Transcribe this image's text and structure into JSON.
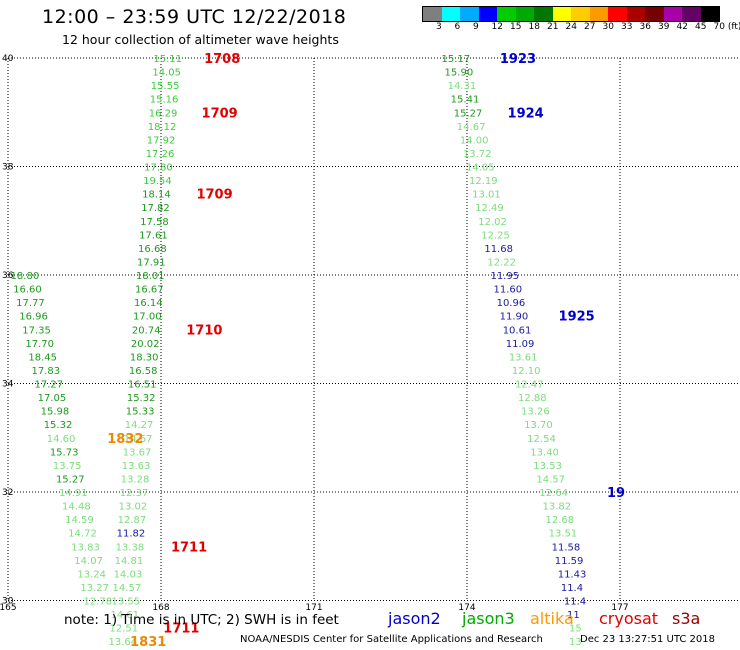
{
  "title": "12:00 – 23:59 UTC 12/22/2018",
  "subtitle": "12 hour collection of altimeter wave heights",
  "color_scale": {
    "labels": [
      "3",
      "6",
      "9",
      "12",
      "15",
      "18",
      "21",
      "24",
      "27",
      "30",
      "33",
      "36",
      "39",
      "42",
      "45",
      "70 (ft)"
    ],
    "colors": [
      "#7f7f7f",
      "#00ffff",
      "#00aaff",
      "#0000ff",
      "#00cc00",
      "#00aa00",
      "#007700",
      "#ffff00",
      "#ffcc00",
      "#ff9900",
      "#ff0000",
      "#aa0000",
      "#770000",
      "#aa00aa",
      "#660066",
      "#000000"
    ]
  },
  "axes": {
    "lon_ticks": [
      "165",
      "168",
      "171",
      "174",
      "177"
    ],
    "lat_ticks": [
      "40",
      "38",
      "36",
      "34",
      "32",
      "30"
    ]
  },
  "tracks": [
    {
      "color": "#3ccc3c",
      "points": [
        {
          "lon": 167.85,
          "lat": 40.0,
          "v": "15.11"
        },
        {
          "lon": 167.83,
          "lat": 39.75,
          "v": "14.05"
        },
        {
          "lon": 167.8,
          "lat": 39.5,
          "v": "15.55"
        },
        {
          "lon": 167.78,
          "lat": 39.25,
          "v": "15.16"
        },
        {
          "lon": 167.76,
          "lat": 39.0,
          "v": "16.29"
        },
        {
          "lon": 167.74,
          "lat": 38.75,
          "v": "18.12"
        },
        {
          "lon": 167.72,
          "lat": 38.5,
          "v": "17.92"
        },
        {
          "lon": 167.7,
          "lat": 38.25,
          "v": "17.26"
        },
        {
          "lon": 167.67,
          "lat": 38.0,
          "v": "17.80"
        },
        {
          "lon": 167.65,
          "lat": 37.75,
          "v": "19.54"
        }
      ]
    },
    {
      "color": "#1e9a1e",
      "points": [
        {
          "lon": 167.63,
          "lat": 37.5,
          "v": "18.14"
        },
        {
          "lon": 167.61,
          "lat": 37.25,
          "v": "17.82"
        },
        {
          "lon": 167.59,
          "lat": 37.0,
          "v": "17.58"
        },
        {
          "lon": 167.57,
          "lat": 36.75,
          "v": "17.61"
        },
        {
          "lon": 167.55,
          "lat": 36.5,
          "v": "16.68"
        },
        {
          "lon": 167.53,
          "lat": 36.25,
          "v": "17.91"
        },
        {
          "lon": 167.51,
          "lat": 36.0,
          "v": "18.01"
        },
        {
          "lon": 167.49,
          "lat": 35.75,
          "v": "16.67"
        },
        {
          "lon": 167.47,
          "lat": 35.5,
          "v": "16.14"
        },
        {
          "lon": 167.45,
          "lat": 35.25,
          "v": "17.00"
        },
        {
          "lon": 167.43,
          "lat": 35.0,
          "v": "20.74"
        },
        {
          "lon": 167.41,
          "lat": 34.75,
          "v": "20.02"
        },
        {
          "lon": 167.39,
          "lat": 34.5,
          "v": "18.30"
        },
        {
          "lon": 167.37,
          "lat": 34.25,
          "v": "16.58"
        },
        {
          "lon": 167.35,
          "lat": 34.0,
          "v": "16.51"
        },
        {
          "lon": 167.33,
          "lat": 33.75,
          "v": "15.32"
        },
        {
          "lon": 167.31,
          "lat": 33.5,
          "v": "15.33"
        }
      ]
    },
    {
      "color": "#7ddc7d",
      "points": [
        {
          "lon": 167.29,
          "lat": 33.25,
          "v": "14.27"
        },
        {
          "lon": 167.27,
          "lat": 33.0,
          "v": "14.67"
        },
        {
          "lon": 167.25,
          "lat": 32.75,
          "v": "13.67"
        },
        {
          "lon": 167.23,
          "lat": 32.5,
          "v": "13.63"
        },
        {
          "lon": 167.21,
          "lat": 32.25,
          "v": "13.28"
        },
        {
          "lon": 167.19,
          "lat": 32.0,
          "v": "12.37"
        },
        {
          "lon": 167.17,
          "lat": 31.75,
          "v": "13.02"
        },
        {
          "lon": 167.15,
          "lat": 31.5,
          "v": "12.87"
        }
      ]
    },
    {
      "color": "#1a1aa0",
      "points": [
        {
          "lon": 167.13,
          "lat": 31.25,
          "v": "11.82"
        }
      ]
    },
    {
      "color": "#7ddc7d",
      "points": [
        {
          "lon": 167.11,
          "lat": 31.0,
          "v": "13.38"
        },
        {
          "lon": 167.09,
          "lat": 30.75,
          "v": "14.81"
        },
        {
          "lon": 167.07,
          "lat": 30.5,
          "v": "14.03"
        },
        {
          "lon": 167.05,
          "lat": 30.25,
          "v": "14.57"
        },
        {
          "lon": 167.03,
          "lat": 30.0,
          "v": "13.55"
        },
        {
          "lon": 167.01,
          "lat": 29.75,
          "v": "14.61"
        },
        {
          "lon": 166.99,
          "lat": 29.5,
          "v": "12.51"
        },
        {
          "lon": 166.97,
          "lat": 29.25,
          "v": "13.64"
        }
      ]
    },
    {
      "color": "#1e9a1e",
      "points": [
        {
          "lon": 165.05,
          "lat": 36.0,
          "v": "18.80"
        },
        {
          "lon": 165.1,
          "lat": 35.75,
          "v": "16.60"
        },
        {
          "lon": 165.16,
          "lat": 35.5,
          "v": "17.77"
        },
        {
          "lon": 165.22,
          "lat": 35.25,
          "v": "16.96"
        },
        {
          "lon": 165.28,
          "lat": 35.0,
          "v": "17.35"
        },
        {
          "lon": 165.34,
          "lat": 34.75,
          "v": "17.70"
        },
        {
          "lon": 165.4,
          "lat": 34.5,
          "v": "18.45"
        },
        {
          "lon": 165.46,
          "lat": 34.25,
          "v": "17.83"
        },
        {
          "lon": 165.52,
          "lat": 34.0,
          "v": "17.27"
        },
        {
          "lon": 165.58,
          "lat": 33.75,
          "v": "17.05"
        },
        {
          "lon": 165.64,
          "lat": 33.5,
          "v": "15.98"
        },
        {
          "lon": 165.7,
          "lat": 33.25,
          "v": "15.32"
        }
      ]
    },
    {
      "color": "#7ddc7d",
      "points": [
        {
          "lon": 165.76,
          "lat": 33.0,
          "v": "14.60"
        }
      ]
    },
    {
      "color": "#1e9a1e",
      "points": [
        {
          "lon": 165.82,
          "lat": 32.75,
          "v": "15.73"
        }
      ]
    },
    {
      "color": "#7ddc7d",
      "points": [
        {
          "lon": 165.88,
          "lat": 32.5,
          "v": "13.75"
        }
      ]
    },
    {
      "color": "#1e9a1e",
      "points": [
        {
          "lon": 165.94,
          "lat": 32.25,
          "v": "15.27"
        }
      ]
    },
    {
      "color": "#7ddc7d",
      "points": [
        {
          "lon": 166.0,
          "lat": 32.0,
          "v": "14.91"
        },
        {
          "lon": 166.06,
          "lat": 31.75,
          "v": "14.48"
        },
        {
          "lon": 166.12,
          "lat": 31.5,
          "v": "14.59"
        },
        {
          "lon": 166.18,
          "lat": 31.25,
          "v": "14.72"
        },
        {
          "lon": 166.24,
          "lat": 31.0,
          "v": "13.83"
        },
        {
          "lon": 166.3,
          "lat": 30.75,
          "v": "14.07"
        },
        {
          "lon": 166.36,
          "lat": 30.5,
          "v": "13.24"
        },
        {
          "lon": 166.42,
          "lat": 30.25,
          "v": "13.27"
        },
        {
          "lon": 166.48,
          "lat": 30.0,
          "v": "12.78"
        }
      ]
    },
    {
      "color": "#1e9a1e",
      "points": [
        {
          "lon": 173.5,
          "lat": 40.0,
          "v": "15.17"
        },
        {
          "lon": 173.56,
          "lat": 39.75,
          "v": "15.90"
        }
      ]
    },
    {
      "color": "#7ddc7d",
      "points": [
        {
          "lon": 173.62,
          "lat": 39.5,
          "v": "14.31"
        }
      ]
    },
    {
      "color": "#1e9a1e",
      "points": [
        {
          "lon": 173.68,
          "lat": 39.25,
          "v": "15.41"
        },
        {
          "lon": 173.74,
          "lat": 39.0,
          "v": "15.27"
        }
      ]
    },
    {
      "color": "#7ddc7d",
      "points": [
        {
          "lon": 173.8,
          "lat": 38.75,
          "v": "14.67"
        },
        {
          "lon": 173.86,
          "lat": 38.5,
          "v": "14.00"
        },
        {
          "lon": 173.92,
          "lat": 38.25,
          "v": "13.72"
        },
        {
          "lon": 173.98,
          "lat": 38.0,
          "v": "14.05"
        },
        {
          "lon": 174.04,
          "lat": 37.75,
          "v": "12.19"
        },
        {
          "lon": 174.1,
          "lat": 37.5,
          "v": "13.01"
        },
        {
          "lon": 174.16,
          "lat": 37.25,
          "v": "12.49"
        },
        {
          "lon": 174.22,
          "lat": 37.0,
          "v": "12.02"
        },
        {
          "lon": 174.28,
          "lat": 36.75,
          "v": "12.25"
        }
      ]
    },
    {
      "color": "#1a1aa0",
      "points": [
        {
          "lon": 174.34,
          "lat": 36.5,
          "v": "11.68"
        }
      ]
    },
    {
      "color": "#7ddc7d",
      "points": [
        {
          "lon": 174.4,
          "lat": 36.25,
          "v": "12.22"
        }
      ]
    },
    {
      "color": "#1a1aa0",
      "points": [
        {
          "lon": 174.46,
          "lat": 36.0,
          "v": "11.95"
        },
        {
          "lon": 174.52,
          "lat": 35.75,
          "v": "11.60"
        },
        {
          "lon": 174.58,
          "lat": 35.5,
          "v": "10.96"
        },
        {
          "lon": 174.64,
          "lat": 35.25,
          "v": "11.90"
        },
        {
          "lon": 174.7,
          "lat": 35.0,
          "v": "10.61"
        },
        {
          "lon": 174.76,
          "lat": 34.75,
          "v": "11.09"
        }
      ]
    },
    {
      "color": "#7ddc7d",
      "points": [
        {
          "lon": 174.82,
          "lat": 34.5,
          "v": "13.61"
        },
        {
          "lon": 174.88,
          "lat": 34.25,
          "v": "12.10"
        },
        {
          "lon": 174.94,
          "lat": 34.0,
          "v": "12.47"
        },
        {
          "lon": 175.0,
          "lat": 33.75,
          "v": "12.88"
        },
        {
          "lon": 175.06,
          "lat": 33.5,
          "v": "13.26"
        },
        {
          "lon": 175.12,
          "lat": 33.25,
          "v": "13.70"
        },
        {
          "lon": 175.18,
          "lat": 33.0,
          "v": "12.54"
        },
        {
          "lon": 175.24,
          "lat": 32.75,
          "v": "13.40"
        },
        {
          "lon": 175.3,
          "lat": 32.5,
          "v": "13.53"
        },
        {
          "lon": 175.36,
          "lat": 32.25,
          "v": "14.57"
        },
        {
          "lon": 175.42,
          "lat": 32.0,
          "v": "12.64"
        },
        {
          "lon": 175.48,
          "lat": 31.75,
          "v": "13.82"
        },
        {
          "lon": 175.54,
          "lat": 31.5,
          "v": "12.68"
        },
        {
          "lon": 175.6,
          "lat": 31.25,
          "v": "13.51"
        }
      ]
    },
    {
      "color": "#1a1aa0",
      "points": [
        {
          "lon": 175.66,
          "lat": 31.0,
          "v": "11.58"
        },
        {
          "lon": 175.72,
          "lat": 30.75,
          "v": "11.59"
        },
        {
          "lon": 175.78,
          "lat": 30.5,
          "v": "11.43"
        },
        {
          "lon": 175.84,
          "lat": 30.25,
          "v": "11.4"
        },
        {
          "lon": 175.9,
          "lat": 30.0,
          "v": "11.4"
        },
        {
          "lon": 175.96,
          "lat": 29.75,
          "v": "11"
        }
      ]
    },
    {
      "color": "#7ddc7d",
      "points": [
        {
          "lon": 176.0,
          "lat": 29.5,
          "v": "15"
        },
        {
          "lon": 176.0,
          "lat": 29.25,
          "v": "13"
        }
      ]
    }
  ],
  "time_labels": [
    {
      "text": "1708",
      "color": "#e00000",
      "lon": 168.1,
      "lat": 40.0
    },
    {
      "text": "1709",
      "color": "#e00000",
      "lon": 168.05,
      "lat": 39.0
    },
    {
      "text": "1709",
      "color": "#e00000",
      "lon": 167.95,
      "lat": 37.5
    },
    {
      "text": "1710",
      "color": "#e00000",
      "lon": 167.75,
      "lat": 35.0
    },
    {
      "text": "1711",
      "color": "#e00000",
      "lon": 167.45,
      "lat": 31.0
    },
    {
      "text": "1711",
      "color": "#e00000",
      "lon": 167.3,
      "lat": 29.5
    },
    {
      "text": "1832",
      "color": "#ee8800",
      "lon": 166.2,
      "lat": 33.0
    },
    {
      "text": "1831",
      "color": "#ee8800",
      "lon": 166.65,
      "lat": 29.25
    },
    {
      "text": "1923",
      "color": "#0000cc",
      "lon": 173.9,
      "lat": 40.0
    },
    {
      "text": "1924",
      "color": "#0000cc",
      "lon": 174.05,
      "lat": 39.0
    },
    {
      "text": "1925",
      "color": "#0000cc",
      "lon": 175.05,
      "lat": 35.25
    },
    {
      "text": "19",
      "color": "#0000cc",
      "lon": 176.0,
      "lat": 32.0
    }
  ],
  "note": "note:  1) Time is in UTC;  2) SWH is in feet",
  "satellites": [
    {
      "name": "jason2",
      "color": "#0000cc"
    },
    {
      "name": "jason3",
      "color": "#00aa00"
    },
    {
      "name": "altika",
      "color": "#ff9900"
    },
    {
      "name": "cryosat",
      "color": "#e00000"
    },
    {
      "name": "s3a",
      "color": "#990000"
    }
  ],
  "footer_left": "NOAA/NESDIS Center for Satellite Applications and Research",
  "footer_right": "Dec 23 13:27:51 UTC 2018"
}
